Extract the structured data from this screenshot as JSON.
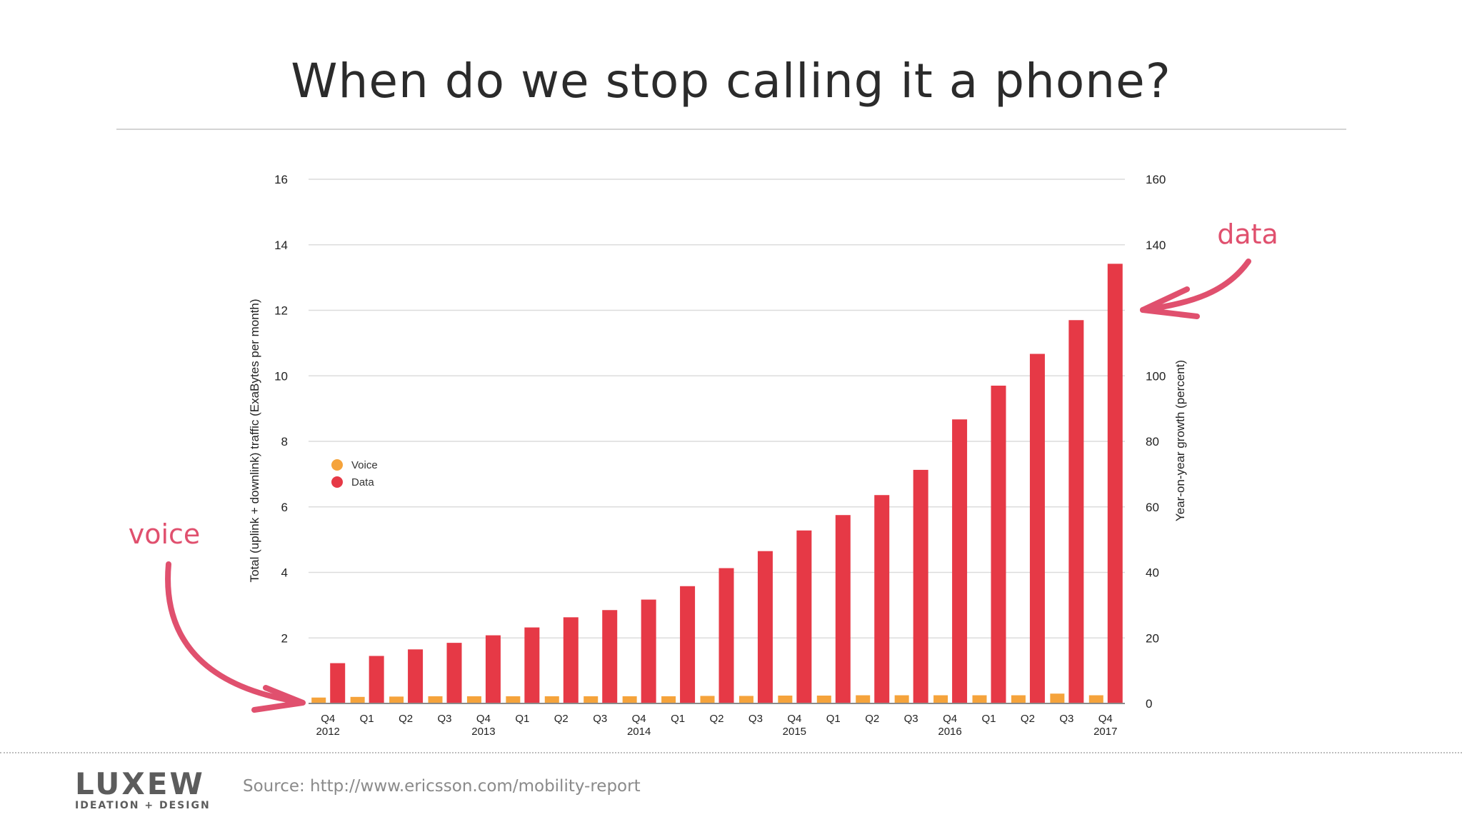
{
  "slide": {
    "title": "When do we stop calling it a phone?",
    "source": "Source: http://www.ericsson.com/mobility-report",
    "logo": {
      "wordmark": "LUXEW",
      "tagline": "IDEATION + DESIGN"
    }
  },
  "annotations": {
    "voice_label": "voice",
    "data_label": "data",
    "color": "#e0506e"
  },
  "chart_data": {
    "type": "bar",
    "title": "",
    "ylabel": "Total (uplink + downlink) traffic (ExaBytes per month)",
    "y2label": "Year-on-year growth (percent)",
    "ylim": [
      0,
      16
    ],
    "y2lim": [
      0,
      160
    ],
    "yticks": [
      "16",
      "14",
      "12",
      "10",
      "8",
      "6",
      "4",
      "2"
    ],
    "y2ticks": [
      "160",
      "140",
      "100",
      "80",
      "60",
      "40",
      "20",
      "0"
    ],
    "grid": true,
    "legend_position": "left-middle",
    "categories": [
      "Q4 2012",
      "Q1 2013",
      "Q2 2013",
      "Q3 2013",
      "Q4 2013",
      "Q1 2014",
      "Q2 2014",
      "Q3 2014",
      "Q4 2014",
      "Q1 2015",
      "Q2 2015",
      "Q3 2015",
      "Q4 2015",
      "Q1 2016",
      "Q2 2016",
      "Q3 2016",
      "Q4 2016",
      "Q1 2017",
      "Q2 2017",
      "Q3 2017",
      "Q4 2017"
    ],
    "tick_labels": [
      {
        "q": "Q4",
        "year": "2012"
      },
      {
        "q": "Q1",
        "year": ""
      },
      {
        "q": "Q2",
        "year": ""
      },
      {
        "q": "Q3",
        "year": ""
      },
      {
        "q": "Q4",
        "year": "2013"
      },
      {
        "q": "Q1",
        "year": ""
      },
      {
        "q": "Q2",
        "year": ""
      },
      {
        "q": "Q3",
        "year": ""
      },
      {
        "q": "Q4",
        "year": "2014"
      },
      {
        "q": "Q1",
        "year": ""
      },
      {
        "q": "Q2",
        "year": ""
      },
      {
        "q": "Q3",
        "year": ""
      },
      {
        "q": "Q4",
        "year": "2015"
      },
      {
        "q": "Q1",
        "year": ""
      },
      {
        "q": "Q2",
        "year": ""
      },
      {
        "q": "Q3",
        "year": ""
      },
      {
        "q": "Q4",
        "year": "2016"
      },
      {
        "q": "Q1",
        "year": ""
      },
      {
        "q": "Q2",
        "year": ""
      },
      {
        "q": "Q3",
        "year": ""
      },
      {
        "q": "Q4",
        "year": "2017"
      }
    ],
    "series": [
      {
        "name": "Voice",
        "color": "#f5a33b",
        "values": [
          0.18,
          0.2,
          0.21,
          0.22,
          0.22,
          0.22,
          0.22,
          0.22,
          0.22,
          0.22,
          0.23,
          0.23,
          0.24,
          0.24,
          0.25,
          0.25,
          0.25,
          0.25,
          0.25,
          0.3,
          0.25
        ]
      },
      {
        "name": "Data",
        "color": "#e63946",
        "values": [
          1.23,
          1.45,
          1.65,
          1.85,
          2.08,
          2.32,
          2.63,
          2.85,
          3.17,
          3.58,
          4.13,
          4.65,
          5.28,
          5.75,
          6.36,
          7.13,
          8.67,
          9.7,
          10.67,
          11.7,
          13.42
        ]
      }
    ]
  }
}
